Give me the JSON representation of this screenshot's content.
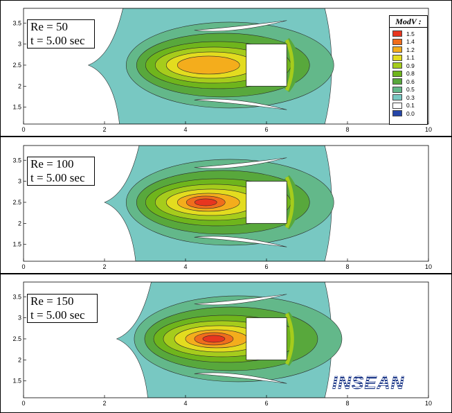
{
  "chart_data": [
    {
      "type": "contour",
      "title": "",
      "annotation_line1": "Re = 50",
      "annotation_line2": "t = 5.00 sec",
      "xlim": [
        0,
        10
      ],
      "ylim": [
        1.1,
        3.85
      ],
      "xticks": [
        0,
        2,
        4,
        6,
        8,
        10
      ],
      "yticks": [
        1.5,
        2,
        2.5,
        3,
        3.5
      ],
      "obstacle": {
        "x": [
          5.5,
          6.5
        ],
        "y": [
          2.0,
          3.0
        ]
      },
      "wake_peak": {
        "x": 4.5,
        "y": 2.5,
        "value": 1.3
      },
      "front_x": 1.6
    },
    {
      "type": "contour",
      "title": "",
      "annotation_line1": "Re = 100",
      "annotation_line2": "t = 5.00 sec",
      "xlim": [
        0,
        10
      ],
      "ylim": [
        1.1,
        3.85
      ],
      "xticks": [
        0,
        2,
        4,
        6,
        8,
        10
      ],
      "yticks": [
        1.5,
        2,
        2.5,
        3,
        3.5
      ],
      "obstacle": {
        "x": [
          5.5,
          6.5
        ],
        "y": [
          2.0,
          3.0
        ]
      },
      "wake_peak": {
        "x": 4.5,
        "y": 2.5,
        "value": 1.5
      },
      "front_x": 2.0
    },
    {
      "type": "contour",
      "title": "",
      "annotation_line1": "Re = 150",
      "annotation_line2": "t = 5.00 sec",
      "xlim": [
        0,
        10
      ],
      "ylim": [
        1.1,
        3.85
      ],
      "xticks": [
        0,
        2,
        4,
        6,
        8,
        10
      ],
      "yticks": [
        1.5,
        2,
        2.5,
        3,
        3.5
      ],
      "obstacle": {
        "x": [
          5.5,
          6.5
        ],
        "y": [
          2.0,
          3.0
        ]
      },
      "wake_peak": {
        "x": 4.7,
        "y": 2.5,
        "value": 1.55
      },
      "front_x": 2.3
    }
  ],
  "legend": {
    "title": "ModV :",
    "levels": [
      {
        "label": "1.5",
        "color": "#e8361f"
      },
      {
        "label": "1.4",
        "color": "#f06d1c"
      },
      {
        "label": "1.2",
        "color": "#f4ad1c"
      },
      {
        "label": "1.1",
        "color": "#e3dc1f"
      },
      {
        "label": "0.9",
        "color": "#a6cc1c"
      },
      {
        "label": "0.8",
        "color": "#6fb51c"
      },
      {
        "label": "0.6",
        "color": "#58a83c"
      },
      {
        "label": "0.5",
        "color": "#63b88a"
      },
      {
        "label": "0.3",
        "color": "#78c8c2"
      },
      {
        "label": "0.1",
        "color": "#ffffff"
      },
      {
        "label": "0.0",
        "color": "#2546a8"
      }
    ]
  },
  "logo": {
    "text": "INSEAN",
    "color": "#1f3a8a"
  }
}
